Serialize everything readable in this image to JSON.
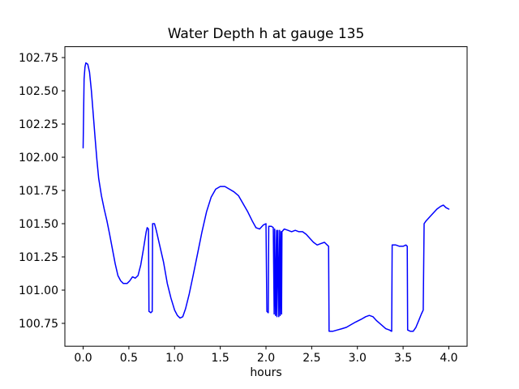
{
  "figure": {
    "background": "#ffffff",
    "axes_color": "#000000"
  },
  "chart_data": {
    "type": "line",
    "title": "Water Depth h at gauge 135",
    "xlabel": "hours",
    "ylabel": "",
    "legend": false,
    "grid": false,
    "xlim": [
      -0.2,
      4.2
    ],
    "ylim": [
      100.578,
      102.832
    ],
    "xticks": [
      0.0,
      0.5,
      1.0,
      1.5,
      2.0,
      2.5,
      3.0,
      3.5,
      4.0
    ],
    "yticks": [
      100.75,
      101.0,
      101.25,
      101.5,
      101.75,
      102.0,
      102.25,
      102.5,
      102.75
    ],
    "line_color": "#0000ff",
    "line_width": 1.5,
    "series": [
      {
        "name": "water-depth-h",
        "points": [
          [
            0.0,
            102.07
          ],
          [
            0.01,
            102.59
          ],
          [
            0.02,
            102.68
          ],
          [
            0.03,
            102.71
          ],
          [
            0.05,
            102.7
          ],
          [
            0.07,
            102.64
          ],
          [
            0.09,
            102.5
          ],
          [
            0.11,
            102.33
          ],
          [
            0.13,
            102.15
          ],
          [
            0.15,
            101.98
          ],
          [
            0.17,
            101.84
          ],
          [
            0.2,
            101.71
          ],
          [
            0.23,
            101.61
          ],
          [
            0.26,
            101.52
          ],
          [
            0.29,
            101.42
          ],
          [
            0.32,
            101.31
          ],
          [
            0.35,
            101.2
          ],
          [
            0.38,
            101.11
          ],
          [
            0.41,
            101.07
          ],
          [
            0.44,
            101.05
          ],
          [
            0.48,
            101.05
          ],
          [
            0.51,
            101.07
          ],
          [
            0.54,
            101.1
          ],
          [
            0.57,
            101.09
          ],
          [
            0.6,
            101.11
          ],
          [
            0.63,
            101.19
          ],
          [
            0.66,
            101.31
          ],
          [
            0.69,
            101.44
          ],
          [
            0.7,
            101.47
          ],
          [
            0.715,
            101.46
          ],
          [
            0.72,
            100.84
          ],
          [
            0.74,
            100.83
          ],
          [
            0.755,
            100.84
          ],
          [
            0.76,
            101.5
          ],
          [
            0.78,
            101.5
          ],
          [
            0.8,
            101.45
          ],
          [
            0.84,
            101.33
          ],
          [
            0.88,
            101.21
          ],
          [
            0.92,
            101.05
          ],
          [
            0.96,
            100.94
          ],
          [
            1.0,
            100.85
          ],
          [
            1.03,
            100.81
          ],
          [
            1.06,
            100.79
          ],
          [
            1.09,
            100.8
          ],
          [
            1.12,
            100.86
          ],
          [
            1.16,
            100.97
          ],
          [
            1.2,
            101.1
          ],
          [
            1.25,
            101.27
          ],
          [
            1.3,
            101.44
          ],
          [
            1.35,
            101.59
          ],
          [
            1.4,
            101.7
          ],
          [
            1.45,
            101.76
          ],
          [
            1.5,
            101.78
          ],
          [
            1.55,
            101.78
          ],
          [
            1.6,
            101.76
          ],
          [
            1.65,
            101.74
          ],
          [
            1.7,
            101.71
          ],
          [
            1.75,
            101.65
          ],
          [
            1.8,
            101.59
          ],
          [
            1.85,
            101.52
          ],
          [
            1.89,
            101.47
          ],
          [
            1.93,
            101.46
          ],
          [
            1.97,
            101.49
          ],
          [
            2.0,
            101.5
          ],
          [
            2.01,
            100.84
          ],
          [
            2.025,
            100.83
          ],
          [
            2.03,
            101.48
          ],
          [
            2.06,
            101.48
          ],
          [
            2.08,
            101.47
          ],
          [
            2.09,
            100.82
          ],
          [
            2.095,
            101.46
          ],
          [
            2.105,
            100.81
          ],
          [
            2.115,
            101.45
          ],
          [
            2.12,
            100.8
          ],
          [
            2.13,
            101.45
          ],
          [
            2.14,
            100.8
          ],
          [
            2.15,
            101.45
          ],
          [
            2.155,
            100.81
          ],
          [
            2.165,
            101.44
          ],
          [
            2.17,
            100.82
          ],
          [
            2.175,
            101.44
          ],
          [
            2.2,
            101.46
          ],
          [
            2.24,
            101.45
          ],
          [
            2.28,
            101.44
          ],
          [
            2.32,
            101.45
          ],
          [
            2.36,
            101.44
          ],
          [
            2.4,
            101.44
          ],
          [
            2.44,
            101.42
          ],
          [
            2.48,
            101.39
          ],
          [
            2.52,
            101.36
          ],
          [
            2.56,
            101.34
          ],
          [
            2.6,
            101.35
          ],
          [
            2.64,
            101.36
          ],
          [
            2.67,
            101.34
          ],
          [
            2.685,
            101.33
          ],
          [
            2.69,
            100.69
          ],
          [
            2.73,
            100.69
          ],
          [
            2.78,
            100.7
          ],
          [
            2.83,
            100.71
          ],
          [
            2.88,
            100.72
          ],
          [
            2.93,
            100.74
          ],
          [
            2.98,
            100.76
          ],
          [
            3.04,
            100.78
          ],
          [
            3.09,
            100.8
          ],
          [
            3.13,
            100.81
          ],
          [
            3.17,
            100.8
          ],
          [
            3.21,
            100.77
          ],
          [
            3.26,
            100.74
          ],
          [
            3.31,
            100.71
          ],
          [
            3.35,
            100.7
          ],
          [
            3.375,
            100.69
          ],
          [
            3.38,
            101.34
          ],
          [
            3.42,
            101.34
          ],
          [
            3.46,
            101.33
          ],
          [
            3.5,
            101.33
          ],
          [
            3.53,
            101.34
          ],
          [
            3.545,
            101.33
          ],
          [
            3.55,
            100.7
          ],
          [
            3.58,
            100.69
          ],
          [
            3.61,
            100.69
          ],
          [
            3.64,
            100.72
          ],
          [
            3.67,
            100.77
          ],
          [
            3.7,
            100.82
          ],
          [
            3.72,
            100.85
          ],
          [
            3.73,
            101.5
          ],
          [
            3.75,
            101.52
          ],
          [
            3.79,
            101.55
          ],
          [
            3.83,
            101.58
          ],
          [
            3.87,
            101.61
          ],
          [
            3.91,
            101.63
          ],
          [
            3.94,
            101.64
          ],
          [
            3.97,
            101.62
          ],
          [
            4.0,
            101.61
          ]
        ]
      }
    ]
  }
}
